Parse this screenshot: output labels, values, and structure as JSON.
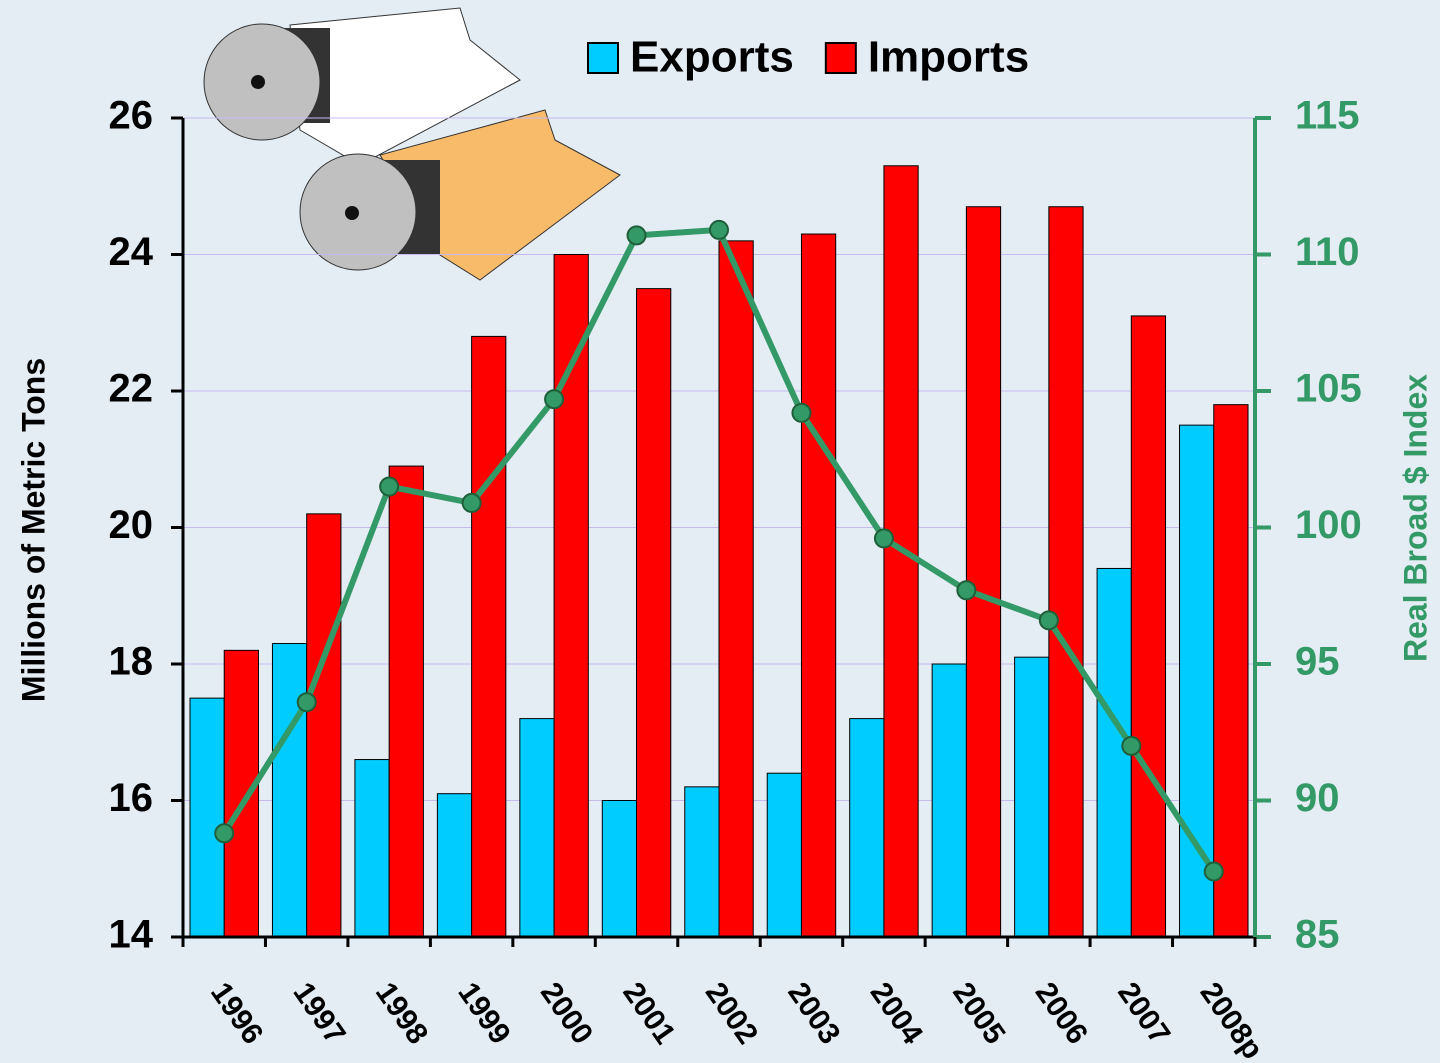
{
  "chart_data": {
    "type": "bar",
    "categories": [
      "1996",
      "1997",
      "1998",
      "1999",
      "2000",
      "2001",
      "2002",
      "2003",
      "2004",
      "2005",
      "2006",
      "2007",
      "2008p"
    ],
    "series": [
      {
        "name": "Exports",
        "color": "#00ccff",
        "type": "bar",
        "values": [
          17.5,
          18.3,
          16.6,
          16.1,
          17.2,
          16.0,
          16.2,
          16.4,
          17.2,
          18.0,
          18.1,
          19.4,
          21.5
        ]
      },
      {
        "name": "Imports",
        "color": "#ff0000",
        "type": "bar",
        "values": [
          18.2,
          20.2,
          20.9,
          22.8,
          24.0,
          23.5,
          24.2,
          24.3,
          25.3,
          24.7,
          24.7,
          23.1,
          21.8
        ]
      },
      {
        "name": "Real Broad $ Index",
        "color": "#339966",
        "type": "line",
        "axis": "y2",
        "values": [
          88.8,
          93.6,
          101.5,
          100.9,
          104.7,
          110.7,
          110.9,
          104.2,
          99.6,
          97.7,
          96.6,
          92.0,
          87.4
        ]
      }
    ],
    "y_label": "Millions of Metric Tons",
    "y2_label": "Real Broad $ Index",
    "ylim": [
      14,
      26
    ],
    "yticks": [
      14,
      16,
      18,
      20,
      22,
      24,
      26
    ],
    "y2lim": [
      85,
      115
    ],
    "y2ticks": [
      85,
      90,
      95,
      100,
      105,
      110,
      115
    ],
    "grid": true,
    "legend": "top"
  }
}
